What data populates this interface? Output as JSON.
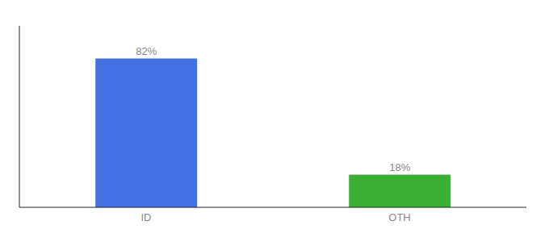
{
  "chart_data": {
    "type": "bar",
    "categories": [
      "ID",
      "OTH"
    ],
    "values": [
      82,
      18
    ],
    "value_labels": [
      "82%",
      "18%"
    ],
    "colors": [
      "#4472e3",
      "#3cb034"
    ],
    "ylim": [
      0,
      100
    ],
    "data_labels": true,
    "tick_labels": "x",
    "grid": false
  }
}
